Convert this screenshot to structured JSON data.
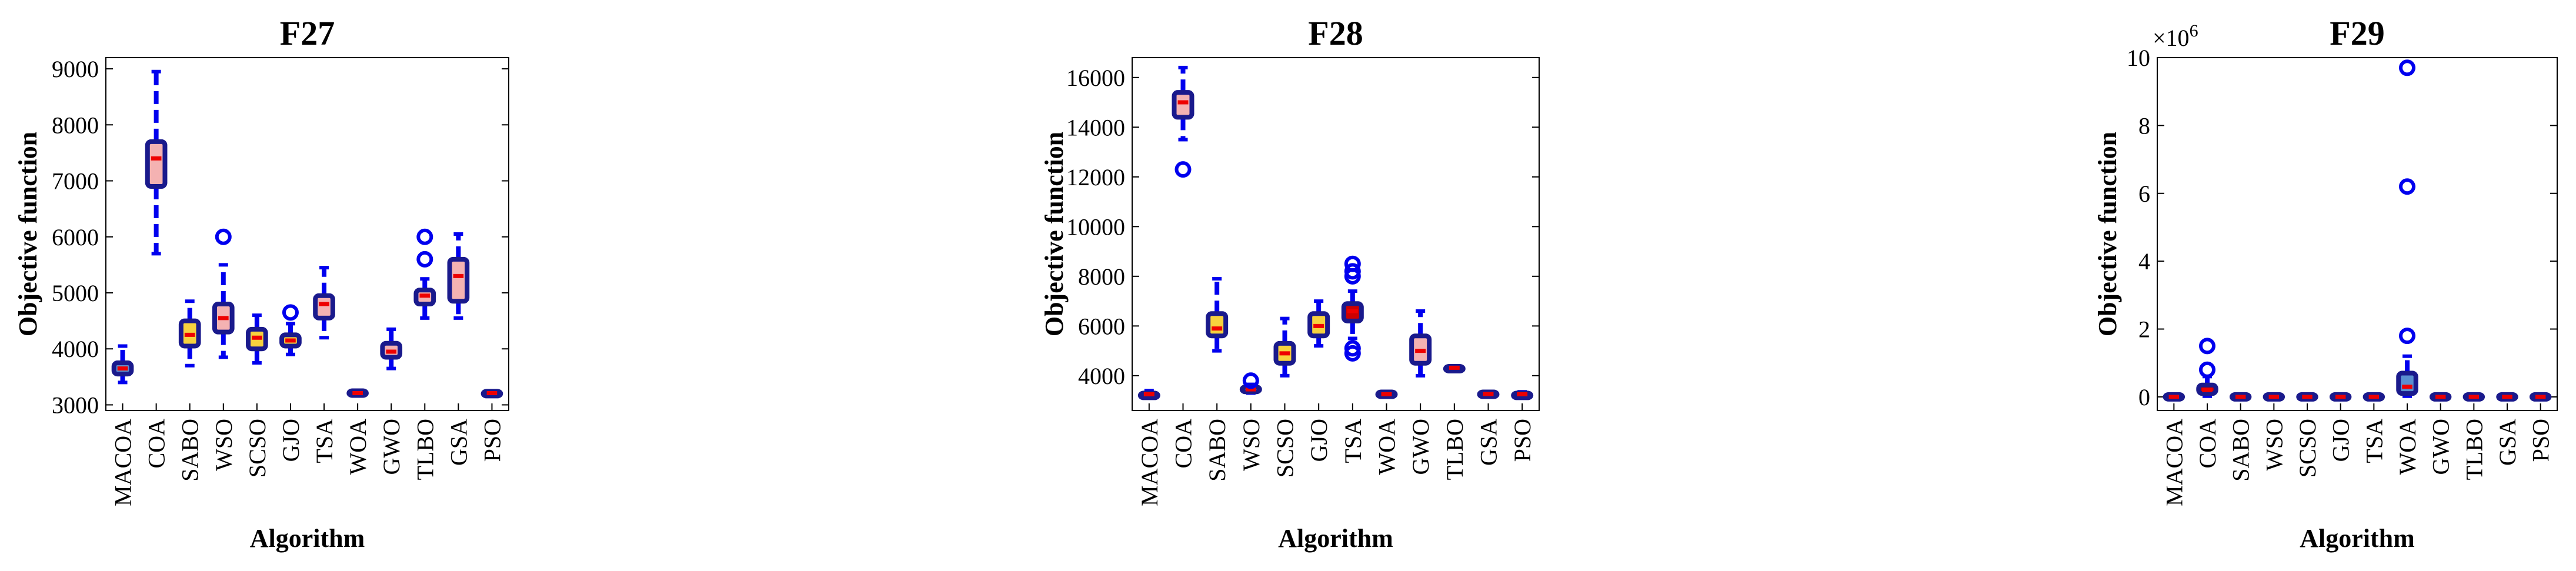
{
  "chart_data": [
    {
      "type": "box",
      "title": "F27",
      "xlabel": "Algorithm",
      "ylabel": "Objective function",
      "categories": [
        "MACOA",
        "COA",
        "SABO",
        "WSO",
        "SCSO",
        "GJO",
        "TSA",
        "WOA",
        "GWO",
        "TLBO",
        "GSA",
        "PSO"
      ],
      "ylim": [
        2900,
        9200
      ],
      "yticks": [
        3000,
        4000,
        5000,
        6000,
        7000,
        8000,
        9000
      ],
      "ytick_labels": [
        "3000",
        "4000",
        "5000",
        "6000",
        "7000",
        "8000",
        "9000"
      ],
      "multiplier": "",
      "boxes": [
        {
          "category": "MACOA",
          "q1": 3550,
          "median": 3650,
          "q3": 3750,
          "whisker_low": 3400,
          "whisker_high": 4050,
          "outliers": [],
          "fill": "#5a8fd0"
        },
        {
          "category": "COA",
          "q1": 6900,
          "median": 7400,
          "q3": 7700,
          "whisker_low": 5700,
          "whisker_high": 8950,
          "outliers": [],
          "fill": "#f4b2b2"
        },
        {
          "category": "SABO",
          "q1": 4050,
          "median": 4250,
          "q3": 4500,
          "whisker_low": 3700,
          "whisker_high": 4850,
          "outliers": [],
          "fill": "#f7d23e"
        },
        {
          "category": "WSO",
          "q1": 4300,
          "median": 4550,
          "q3": 4800,
          "whisker_low": 3850,
          "whisker_high": 5500,
          "outliers": [
            6000
          ],
          "fill": "#f4b2b2"
        },
        {
          "category": "SCSO",
          "q1": 4000,
          "median": 4200,
          "q3": 4350,
          "whisker_low": 3750,
          "whisker_high": 4600,
          "outliers": [],
          "fill": "#f7d23e"
        },
        {
          "category": "GJO",
          "q1": 4050,
          "median": 4150,
          "q3": 4250,
          "whisker_low": 3900,
          "whisker_high": 4450,
          "outliers": [
            4650
          ],
          "fill": "#f7d23e"
        },
        {
          "category": "TSA",
          "q1": 4550,
          "median": 4800,
          "q3": 4950,
          "whisker_low": 4200,
          "whisker_high": 5450,
          "outliers": [],
          "fill": "#f4b2b2"
        },
        {
          "category": "WOA",
          "q1": 3210,
          "median": 3210,
          "q3": 3210,
          "whisker_low": 3210,
          "whisker_high": 3210,
          "outliers": [],
          "fill": "#cc0000"
        },
        {
          "category": "GWO",
          "q1": 3850,
          "median": 3950,
          "q3": 4100,
          "whisker_low": 3650,
          "whisker_high": 4350,
          "outliers": [],
          "fill": "#f4b2b2"
        },
        {
          "category": "TLBO",
          "q1": 4800,
          "median": 4950,
          "q3": 5050,
          "whisker_low": 4550,
          "whisker_high": 5250,
          "outliers": [
            5600,
            6000
          ],
          "fill": "#f4b2b2"
        },
        {
          "category": "GSA",
          "q1": 4850,
          "median": 5300,
          "q3": 5600,
          "whisker_low": 4550,
          "whisker_high": 6050,
          "outliers": [],
          "fill": "#f4b2b2"
        },
        {
          "category": "PSO",
          "q1": 3200,
          "median": 3210,
          "q3": 3220,
          "whisker_low": 3180,
          "whisker_high": 3240,
          "outliers": [],
          "fill": "#5a8fd0"
        }
      ]
    },
    {
      "type": "box",
      "title": "F28",
      "xlabel": "Algorithm",
      "ylabel": "Objective function",
      "categories": [
        "MACOA",
        "COA",
        "SABO",
        "WSO",
        "SCSO",
        "GJO",
        "TSA",
        "WOA",
        "GWO",
        "TLBO",
        "GSA",
        "PSO"
      ],
      "ylim": [
        2600,
        16800
      ],
      "yticks": [
        4000,
        6000,
        8000,
        10000,
        12000,
        14000,
        16000
      ],
      "ytick_labels": [
        "4000",
        "6000",
        "8000",
        "10000",
        "12000",
        "14000",
        "16000"
      ],
      "multiplier": "",
      "boxes": [
        {
          "category": "MACOA",
          "q1": 3200,
          "median": 3250,
          "q3": 3300,
          "whisker_low": 3150,
          "whisker_high": 3400,
          "outliers": [],
          "fill": "#5a8fd0"
        },
        {
          "category": "COA",
          "q1": 14400,
          "median": 15000,
          "q3": 15400,
          "whisker_low": 13500,
          "whisker_high": 16400,
          "outliers": [
            12300
          ],
          "fill": "#f4b2b2"
        },
        {
          "category": "SABO",
          "q1": 5600,
          "median": 5900,
          "q3": 6500,
          "whisker_low": 5000,
          "whisker_high": 7900,
          "outliers": [],
          "fill": "#f7d23e"
        },
        {
          "category": "WSO",
          "q1": 3350,
          "median": 3450,
          "q3": 3550,
          "whisker_low": 3300,
          "whisker_high": 3650,
          "outliers": [
            3800
          ],
          "fill": "#f4b2b2"
        },
        {
          "category": "SCSO",
          "q1": 4500,
          "median": 4900,
          "q3": 5300,
          "whisker_low": 4000,
          "whisker_high": 6300,
          "outliers": [],
          "fill": "#f7d23e"
        },
        {
          "category": "GJO",
          "q1": 5600,
          "median": 6000,
          "q3": 6500,
          "whisker_low": 5200,
          "whisker_high": 7000,
          "outliers": [],
          "fill": "#f7d23e"
        },
        {
          "category": "TSA",
          "q1": 6200,
          "median": 6600,
          "q3": 6900,
          "whisker_low": 5500,
          "whisker_high": 7400,
          "outliers": [
            4900,
            5100,
            8000,
            8200,
            8500
          ],
          "fill": "#cc0000"
        },
        {
          "category": "WOA",
          "q1": 3250,
          "median": 3250,
          "q3": 3250,
          "whisker_low": 3250,
          "whisker_high": 3250,
          "outliers": [],
          "fill": "#cc0000"
        },
        {
          "category": "GWO",
          "q1": 4500,
          "median": 5000,
          "q3": 5600,
          "whisker_low": 4000,
          "whisker_high": 6600,
          "outliers": [],
          "fill": "#f4b2b2"
        },
        {
          "category": "TLBO",
          "q1": 4280,
          "median": 4320,
          "q3": 4360,
          "whisker_low": 4250,
          "whisker_high": 4400,
          "outliers": [],
          "fill": "#f4b2b2"
        },
        {
          "category": "GSA",
          "q1": 3250,
          "median": 3260,
          "q3": 3270,
          "whisker_low": 3220,
          "whisker_high": 3300,
          "outliers": [],
          "fill": "#f4b2b2"
        },
        {
          "category": "PSO",
          "q1": 3200,
          "median": 3250,
          "q3": 3300,
          "whisker_low": 3150,
          "whisker_high": 3350,
          "outliers": [],
          "fill": "#5a8fd0"
        }
      ]
    },
    {
      "type": "box",
      "title": "F29",
      "xlabel": "Algorithm",
      "ylabel": "Objective function",
      "categories": [
        "MACOA",
        "COA",
        "SABO",
        "WSO",
        "SCSO",
        "GJO",
        "TSA",
        "WOA",
        "GWO",
        "TLBO",
        "GSA",
        "PSO"
      ],
      "ylim": [
        -0.4,
        10
      ],
      "yticks": [
        0,
        2,
        4,
        6,
        8,
        10
      ],
      "ytick_labels": [
        "0",
        "2",
        "4",
        "6",
        "8",
        "10"
      ],
      "multiplier": "×10",
      "multiplier_exp": "6",
      "boxes": [
        {
          "category": "MACOA",
          "q1": 0,
          "median": 0,
          "q3": 0,
          "whisker_low": 0,
          "whisker_high": 0,
          "outliers": [],
          "fill": "#cc0000"
        },
        {
          "category": "COA",
          "q1": 0.1,
          "median": 0.2,
          "q3": 0.35,
          "whisker_low": 0.02,
          "whisker_high": 0.6,
          "outliers": [
            0.8,
            1.5
          ],
          "fill": "#cc0000"
        },
        {
          "category": "SABO",
          "q1": 0,
          "median": 0,
          "q3": 0.03,
          "whisker_low": 0,
          "whisker_high": 0.05,
          "outliers": [],
          "fill": "#5a8fd0"
        },
        {
          "category": "WSO",
          "q1": 0,
          "median": 0,
          "q3": 0.03,
          "whisker_low": 0,
          "whisker_high": 0.05,
          "outliers": [],
          "fill": "#5a8fd0"
        },
        {
          "category": "SCSO",
          "q1": 0,
          "median": 0,
          "q3": 0.03,
          "whisker_low": 0,
          "whisker_high": 0.05,
          "outliers": [],
          "fill": "#5a8fd0"
        },
        {
          "category": "GJO",
          "q1": 0,
          "median": 0,
          "q3": 0.03,
          "whisker_low": 0,
          "whisker_high": 0.05,
          "outliers": [],
          "fill": "#5a8fd0"
        },
        {
          "category": "TSA",
          "q1": 0,
          "median": 0,
          "q3": 0.03,
          "whisker_low": 0,
          "whisker_high": 0.05,
          "outliers": [],
          "fill": "#5a8fd0"
        },
        {
          "category": "WOA",
          "q1": 0.1,
          "median": 0.3,
          "q3": 0.7,
          "whisker_low": 0.02,
          "whisker_high": 1.2,
          "outliers": [
            1.8,
            6.2,
            9.7
          ],
          "fill": "#5a8fd0"
        },
        {
          "category": "GWO",
          "q1": 0,
          "median": 0,
          "q3": 0.03,
          "whisker_low": 0,
          "whisker_high": 0.05,
          "outliers": [],
          "fill": "#5a8fd0"
        },
        {
          "category": "TLBO",
          "q1": 0,
          "median": 0,
          "q3": 0,
          "whisker_low": 0,
          "whisker_high": 0,
          "outliers": [],
          "fill": "#cc0000"
        },
        {
          "category": "GSA",
          "q1": 0,
          "median": 0,
          "q3": 0.03,
          "whisker_low": 0,
          "whisker_high": 0.05,
          "outliers": [],
          "fill": "#5a8fd0"
        },
        {
          "category": "PSO",
          "q1": 0,
          "median": 0,
          "q3": 0.03,
          "whisker_low": 0,
          "whisker_high": 0.05,
          "outliers": [],
          "fill": "#5a8fd0"
        }
      ]
    }
  ],
  "colors": {
    "box_edge": "#1a1a8c",
    "whisker": "#0000ee",
    "outlier": "#0000ee",
    "median": "#ee0000",
    "axis": "#000000"
  }
}
